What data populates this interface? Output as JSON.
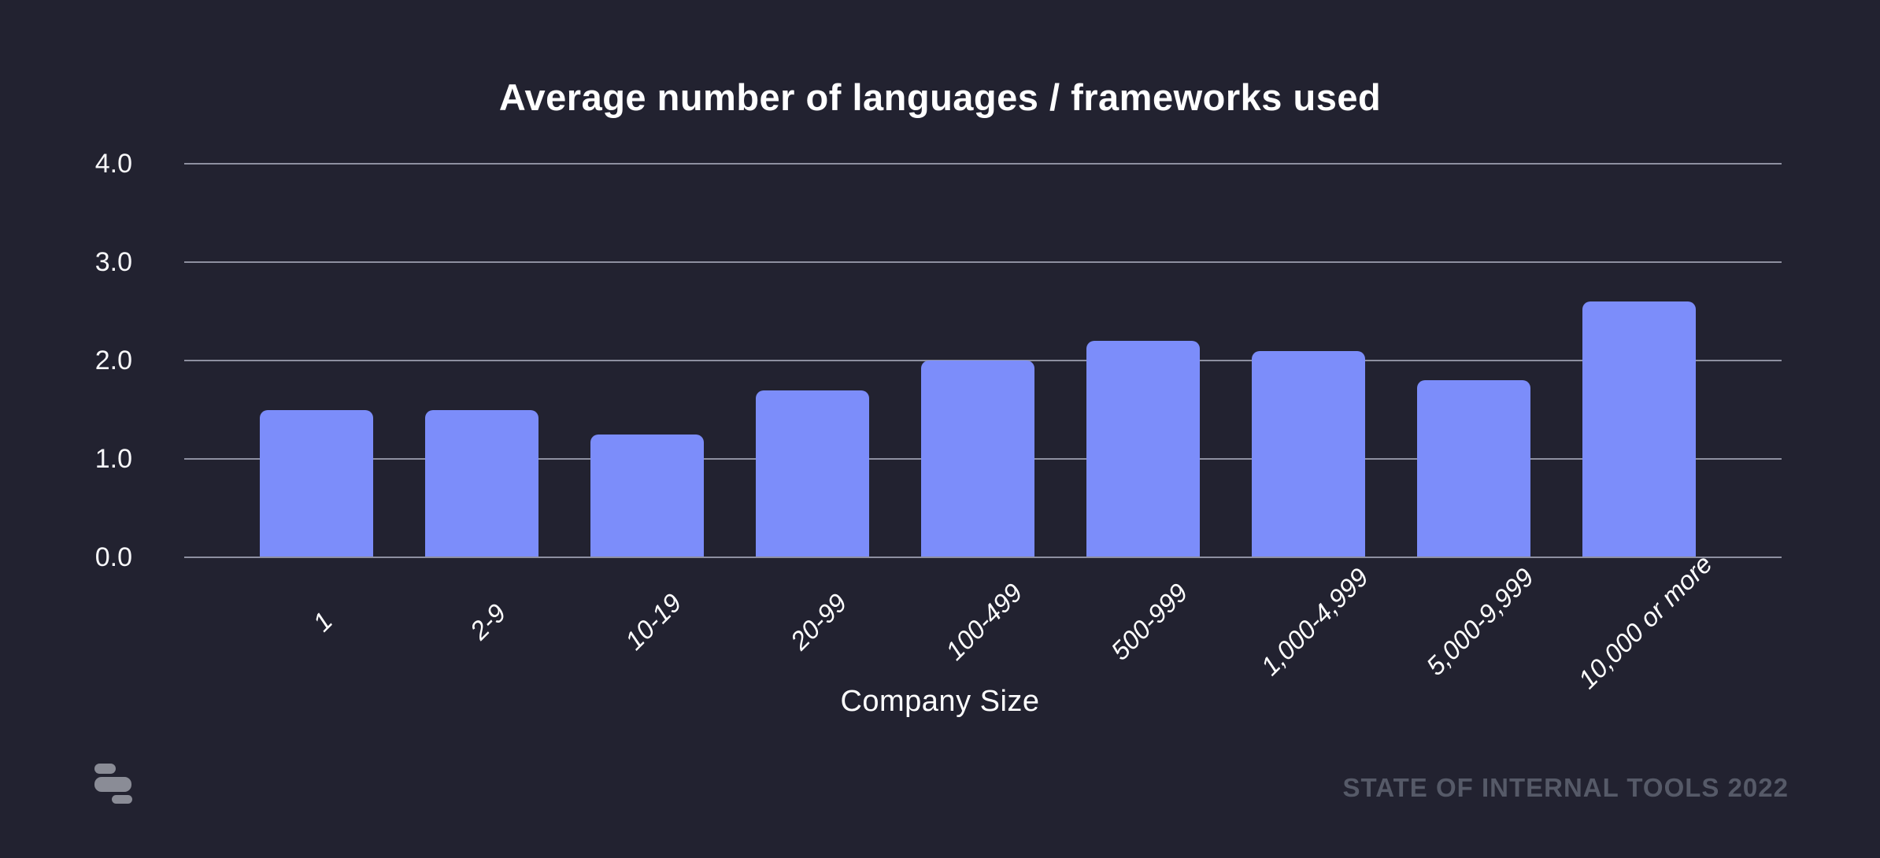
{
  "page": {
    "background_color": "#222230"
  },
  "header": {
    "title": "Average number of languages / frameworks used"
  },
  "chart_data": {
    "type": "bar",
    "title": "Average number of languages / frameworks used",
    "categories": [
      "1",
      "2-9",
      "10-19",
      "20-99",
      "100-499",
      "500-999",
      "1,000-4,999",
      "5,000-9,999",
      "10,000 or more"
    ],
    "values": [
      1.5,
      1.5,
      1.25,
      1.7,
      2.0,
      2.2,
      2.1,
      1.8,
      2.6
    ],
    "xlabel": "Company Size",
    "ylabel": "",
    "ylim": [
      0,
      4
    ],
    "y_ticks": [
      "0.0",
      "1.0",
      "2.0",
      "3.0",
      "4.0"
    ],
    "grid": true,
    "legend": "none",
    "bar_color": "#7C8DFA",
    "gridline_color": "#8E90A0",
    "background_color": "#222230",
    "text_color": "#FFFFFF"
  },
  "footer": {
    "logo": "retool-logo",
    "watermark": "STATE OF INTERNAL TOOLS 2022"
  }
}
